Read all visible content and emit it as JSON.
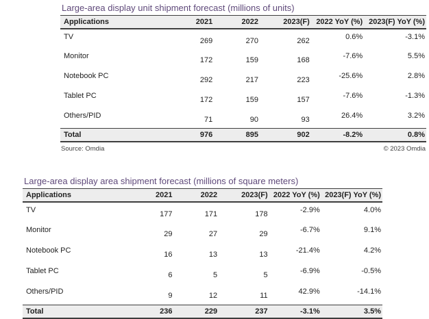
{
  "accent_color": "#5f497a",
  "tables": [
    {
      "title": "Large-area display unit shipment forecast (millions of units)",
      "columns": [
        "Applications",
        "2021",
        "2022",
        "2023(F)",
        "2022 YoY (%)",
        "2023(F) YoY (%)"
      ],
      "rows": [
        {
          "app": "TV",
          "y2021": "269",
          "y2022": "270",
          "y2023f": "262",
          "yoy2022": "0.6%",
          "yoy2023f": "-3.1%"
        },
        {
          "app": "Monitor",
          "y2021": "172",
          "y2022": "159",
          "y2023f": "168",
          "yoy2022": "-7.6%",
          "yoy2023f": "5.5%"
        },
        {
          "app": "Notebook PC",
          "y2021": "292",
          "y2022": "217",
          "y2023f": "223",
          "yoy2022": "-25.6%",
          "yoy2023f": "2.8%"
        },
        {
          "app": "Tablet PC",
          "y2021": "172",
          "y2022": "159",
          "y2023f": "157",
          "yoy2022": "-7.6%",
          "yoy2023f": "-1.3%"
        },
        {
          "app": "Others/PID",
          "y2021": "71",
          "y2022": "90",
          "y2023f": "93",
          "yoy2022": "26.4%",
          "yoy2023f": "3.2%"
        }
      ],
      "total": {
        "app": "Total",
        "y2021": "976",
        "y2022": "895",
        "y2023f": "902",
        "yoy2022": "-8.2%",
        "yoy2023f": "0.8%"
      },
      "source": "Source: Omdia",
      "copyright": "© 2023 Omdia"
    },
    {
      "title": "Large-area display area shipment forecast (millions of square meters)",
      "columns": [
        "Applications",
        "2021",
        "2022",
        "2023(F)",
        "2022 YoY (%)",
        "2023(F) YoY (%)"
      ],
      "rows": [
        {
          "app": "TV",
          "y2021": "177",
          "y2022": "171",
          "y2023f": "178",
          "yoy2022": "-2.9%",
          "yoy2023f": "4.0%"
        },
        {
          "app": "Monitor",
          "y2021": "29",
          "y2022": "27",
          "y2023f": "29",
          "yoy2022": "-6.7%",
          "yoy2023f": "9.1%"
        },
        {
          "app": "Notebook PC",
          "y2021": "16",
          "y2022": "13",
          "y2023f": "13",
          "yoy2022": "-21.4%",
          "yoy2023f": "4.2%"
        },
        {
          "app": "Tablet PC",
          "y2021": "6",
          "y2022": "5",
          "y2023f": "5",
          "yoy2022": "-6.9%",
          "yoy2023f": "-0.5%"
        },
        {
          "app": "Others/PID",
          "y2021": "9",
          "y2022": "12",
          "y2023f": "11",
          "yoy2022": "42.9%",
          "yoy2023f": "-14.1%"
        }
      ],
      "total": {
        "app": "Total",
        "y2021": "236",
        "y2022": "229",
        "y2023f": "237",
        "yoy2022": "-3.1%",
        "yoy2023f": "3.5%"
      }
    }
  ]
}
